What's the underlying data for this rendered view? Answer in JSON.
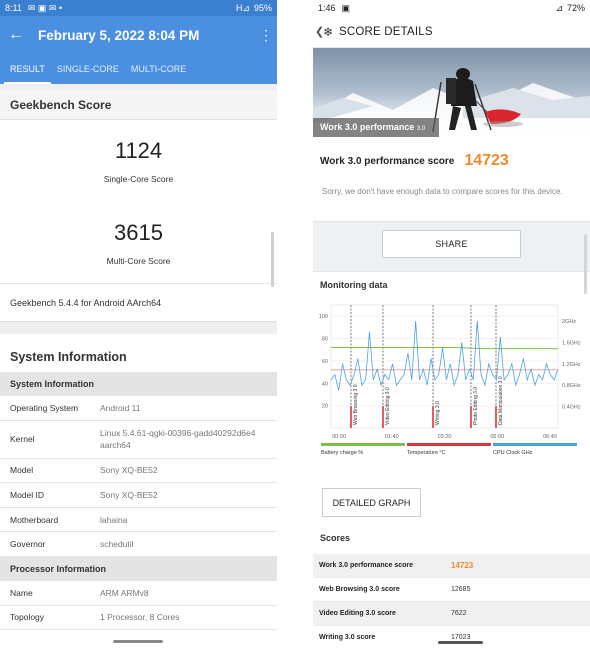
{
  "left": {
    "status": {
      "time": "8:11",
      "icons": "✉ ▣ ✉ •",
      "signal": "H⊿",
      "battery": "95%"
    },
    "appbar": {
      "title": "February 5, 2022 8:04 PM"
    },
    "tabs": [
      {
        "label": "RESULT"
      },
      {
        "label": "SINGLE-CORE"
      },
      {
        "label": "MULTI-CORE"
      }
    ],
    "score_header": "Geekbench Score",
    "single_core": {
      "value": "1124",
      "label": "Single-Core Score"
    },
    "multi_core": {
      "value": "3615",
      "label": "Multi-Core Score"
    },
    "version": "Geekbench 5.4.4 for Android AArch64",
    "sysinfo_title": "System Information",
    "system_sub": "System Information",
    "system_rows": [
      {
        "k": "Operating System",
        "v": "Android 11"
      },
      {
        "k": "Kernel",
        "v": "Linux 5.4.61-qgki-00396-gadd40292d6e4 aarch64"
      },
      {
        "k": "Model",
        "v": "Sony XQ-BE52"
      },
      {
        "k": "Model ID",
        "v": "Sony XQ-BE52"
      },
      {
        "k": "Motherboard",
        "v": "lahaina"
      },
      {
        "k": "Governor",
        "v": "schedutil"
      }
    ],
    "processor_sub": "Processor Information",
    "processor_rows": [
      {
        "k": "Name",
        "v": "ARM ARMv8"
      },
      {
        "k": "Topology",
        "v": "1 Processor, 8 Cores"
      }
    ]
  },
  "right": {
    "status": {
      "time": "1:46",
      "icons": "▣",
      "signal": "⊿",
      "battery": "72%"
    },
    "header": {
      "title": "SCORE DETAILS"
    },
    "banner_caption": "Work 3.0 performance",
    "banner_caption_small": "3.0",
    "score_label": "Work 3.0 performance score",
    "score_value": "14723",
    "sorry": "Sorry, we don't have enough data to compare scores for this device.",
    "share_label": "SHARE",
    "monitoring_title": "Monitoring data",
    "detailed_label": "DETAILED GRAPH",
    "scores_title": "Scores",
    "scores": [
      {
        "k": "Work 3.0 performance score",
        "v": "14723",
        "hl": true
      },
      {
        "k": "Web Browsing 3.0 score",
        "v": "12685"
      },
      {
        "k": "Video Editing 3.0 score",
        "v": "7622"
      },
      {
        "k": "Writing 3.0 score",
        "v": "17023"
      }
    ]
  },
  "chart_data": {
    "type": "line",
    "y_left_ticks": [
      "100",
      "80",
      "60",
      "40",
      "20"
    ],
    "y_right_ticks": [
      "2GHz",
      "1.6GHz",
      "1.2GHz",
      "0.8GHz",
      "0.4GHz"
    ],
    "x_ticks": [
      "00:00",
      "01:40",
      "03:20",
      "05:00",
      "06:40"
    ],
    "segments": [
      "Web Browsing 3.0",
      "Video Editing 3.0",
      "Writing 3.0",
      "Photo Editing 3.0",
      "Data Manipulation 3.0"
    ],
    "legend": [
      {
        "name": "Battery charge %",
        "color": "#7cc04a"
      },
      {
        "name": "Temperature °C",
        "color": "#d9363e"
      },
      {
        "name": "CPU Clock GHz",
        "color": "#4aa3df"
      }
    ],
    "battery": [
      72,
      72,
      72,
      72,
      72,
      72,
      71,
      71,
      71,
      71
    ],
    "temperature": [
      52,
      52,
      52,
      52,
      52,
      52,
      52,
      52,
      52,
      52
    ],
    "cpu_clock": [
      0.9,
      1.0,
      0.7,
      1.2,
      0.9,
      0.8,
      1.0,
      1.3,
      0.8,
      0.9,
      1.8,
      0.9,
      1.1,
      0.8,
      1.0,
      0.9,
      1.2,
      0.8,
      0.9,
      1.0,
      1.4,
      0.9,
      2.0,
      0.9,
      1.1,
      0.8,
      1.3,
      0.9,
      1.0,
      1.5,
      0.9,
      1.2,
      0.8,
      1.0,
      1.6,
      0.9,
      1.1,
      0.9,
      2.0,
      1.0,
      0.8,
      1.2,
      1.0,
      0.9,
      1.7,
      0.9,
      1.0,
      1.2,
      0.8,
      1.0,
      1.3,
      0.9,
      1.1,
      0.8,
      1.0,
      0.9,
      1.2,
      1.0,
      0.9,
      1.1
    ],
    "cpu_range": [
      0,
      2.3
    ]
  }
}
